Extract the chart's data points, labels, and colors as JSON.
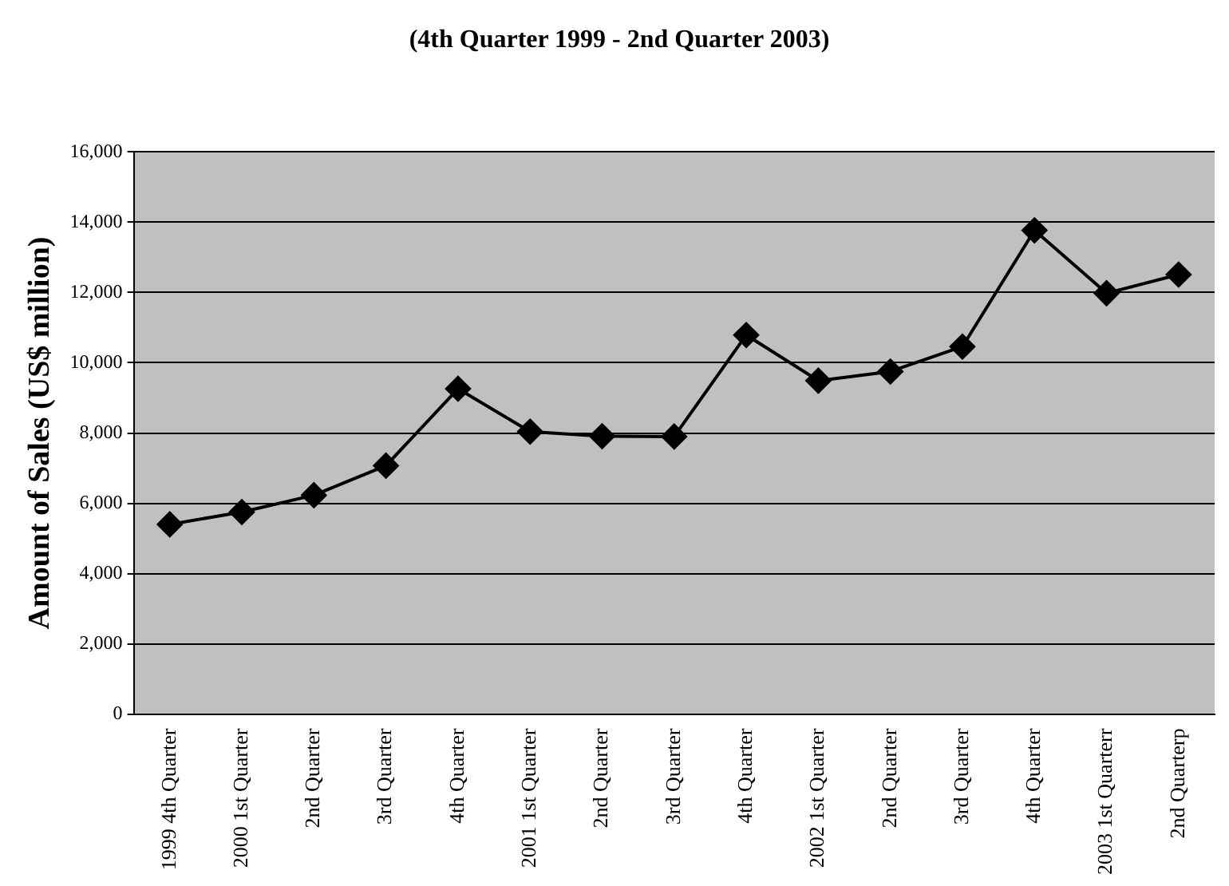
{
  "chart_data": {
    "type": "line",
    "title": "(4th Quarter 1999 - 2nd Quarter 2003)",
    "ylabel": "Amount of Sales (US$ million)",
    "categories": [
      "1999 4th Quarter",
      "2000 1st Quarter",
      "2nd Quarter",
      "3rd Quarter",
      "4th Quarter",
      "2001 1st Quarter",
      "2nd Quarter",
      "3rd Quarter",
      "4th Quarter",
      "2002 1st Quarter",
      "2nd Quarter",
      "3rd Quarter",
      "4th Quarter",
      "2003 1st Quarterr",
      "2nd Quarterp"
    ],
    "series": [
      {
        "color": "#000000",
        "values": [
          5400,
          5750,
          6230,
          7070,
          9260,
          8040,
          7910,
          7900,
          10790,
          9490,
          9750,
          10460,
          13770,
          11980,
          12510
        ]
      }
    ],
    "ylim": [
      0,
      16000
    ],
    "yticks": [
      0,
      {
        "value": 2000,
        "label": "2,000"
      },
      {
        "value": 4000,
        "label": "4,000"
      },
      {
        "value": 6000,
        "label": "6,000"
      },
      {
        "value": 8000,
        "label": "8,000"
      },
      {
        "value": 10000,
        "label": "10,000"
      },
      {
        "value": 12000,
        "label": "12,000"
      },
      {
        "value": 14000,
        "label": "14,000"
      },
      {
        "value": 16000,
        "label": "16,000"
      }
    ],
    "grid": "y",
    "legend": false,
    "marker": "diamond",
    "line_style": "solid"
  }
}
